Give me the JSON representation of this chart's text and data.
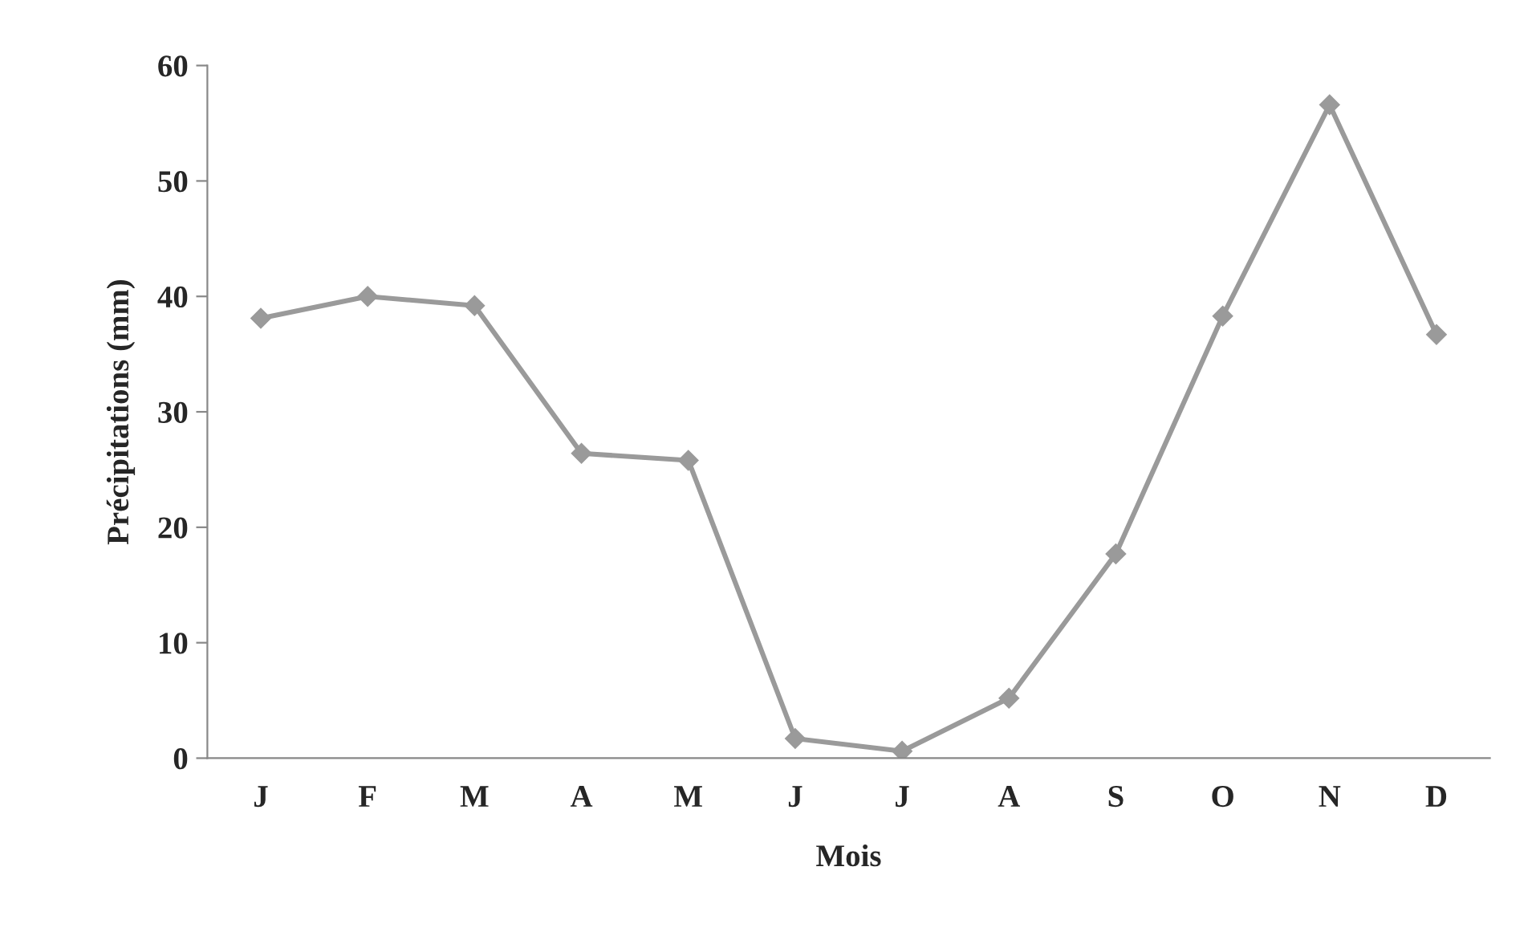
{
  "chart_data": {
    "type": "line",
    "xlabel": "Mois",
    "ylabel": "Précipitations (mm)",
    "categories": [
      "J",
      "F",
      "M",
      "A",
      "M",
      "J",
      "J",
      "A",
      "S",
      "O",
      "N",
      "D"
    ],
    "series": [
      {
        "color": "#9a9a9a",
        "values": [
          38.1,
          40.0,
          39.2,
          26.4,
          25.8,
          1.7,
          0.6,
          5.2,
          17.7,
          38.3,
          56.6,
          36.7
        ]
      }
    ],
    "ylim": [
      0,
      60
    ],
    "yticks": [
      0,
      10,
      20,
      30,
      40,
      50,
      60
    ],
    "marker": "diamond",
    "line_style": "solid",
    "grid": false
  }
}
